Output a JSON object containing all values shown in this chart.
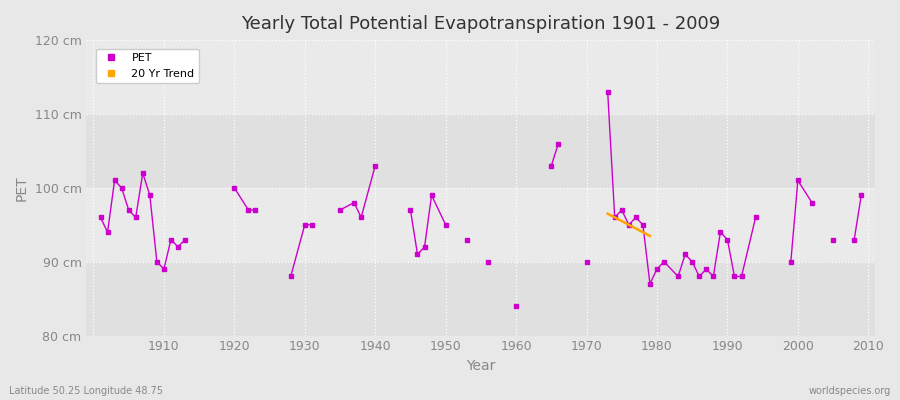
{
  "title": "Yearly Total Potential Evapotranspiration 1901 - 2009",
  "xlabel": "Year",
  "ylabel": "PET",
  "footnote_left": "Latitude 50.25 Longitude 48.75",
  "footnote_right": "worldspecies.org",
  "ylim": [
    80,
    120
  ],
  "yticks": [
    80,
    90,
    100,
    110,
    120
  ],
  "ytick_labels": [
    "80 cm",
    "90 cm",
    "100 cm",
    "110 cm",
    "120 cm"
  ],
  "xlim": [
    1899,
    2011
  ],
  "xticks": [
    1900,
    1910,
    1920,
    1930,
    1940,
    1950,
    1960,
    1970,
    1980,
    1990,
    2000,
    2010
  ],
  "pet_color": "#CC00CC",
  "trend_color": "#FFA500",
  "bg_color": "#E8E8E8",
  "band_light": "#EBEBEB",
  "band_dark": "#DCDCDC",
  "grid_color": "#FFFFFF",
  "pet_years": [
    1901,
    1902,
    1903,
    1904,
    1905,
    1906,
    1907,
    1908,
    1909,
    1910,
    1911,
    1912,
    1913,
    1920,
    1922,
    1923,
    1928,
    1930,
    1931,
    1935,
    1937,
    1938,
    1940,
    1945,
    1946,
    1947,
    1948,
    1950,
    1953,
    1956,
    1960,
    1965,
    1966,
    1970,
    1973,
    1974,
    1975,
    1976,
    1977,
    1978,
    1979,
    1980,
    1981,
    1983,
    1984,
    1985,
    1986,
    1987,
    1988,
    1989,
    1990,
    1991,
    1992,
    1994,
    1999,
    2000,
    2002,
    2005,
    2008,
    2009
  ],
  "pet_values": [
    96,
    94,
    101,
    100,
    97,
    96,
    102,
    99,
    90,
    89,
    93,
    92,
    93,
    100,
    97,
    97,
    88,
    95,
    95,
    97,
    98,
    96,
    103,
    97,
    91,
    92,
    99,
    95,
    93,
    90,
    84,
    103,
    106,
    90,
    113,
    96,
    97,
    95,
    96,
    95,
    87,
    89,
    90,
    88,
    91,
    90,
    88,
    89,
    88,
    94,
    93,
    88,
    88,
    96,
    90,
    101,
    98,
    93,
    93,
    99
  ],
  "trend_years": [
    1973,
    1974,
    1975,
    1976,
    1977,
    1978,
    1979
  ],
  "trend_values": [
    96.5,
    96.0,
    95.5,
    95.0,
    94.5,
    94.0,
    93.5
  ],
  "isolated_years": [],
  "isolated_values": []
}
